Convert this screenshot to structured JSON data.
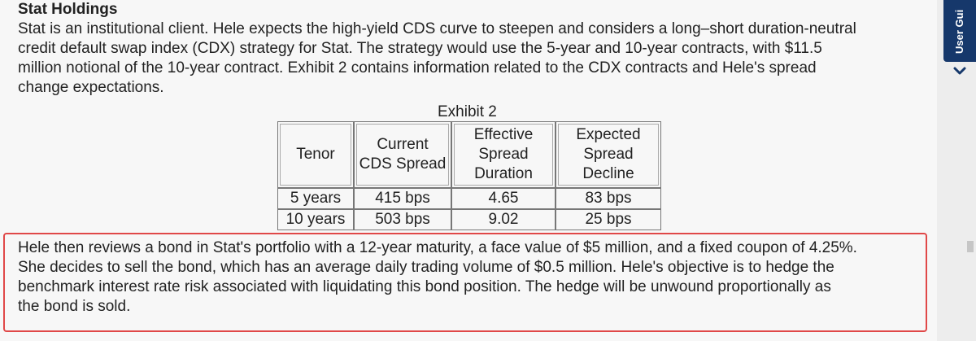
{
  "heading": "Stat Holdings",
  "intro": [
    "Stat is an institutional client. Hele expects the high-yield CDS curve to steepen and considers a long–short duration-neutral",
    "credit default swap index (CDX) strategy for Stat. The strategy would use the 5-year and 10-year contracts, with $11.5",
    "million notional of the 10-year contract. Exhibit 2 contains information related to the CDX contracts and Hele's spread",
    "change expectations."
  ],
  "exhibit": {
    "title": "Exhibit 2",
    "headers": [
      [
        "Tenor"
      ],
      [
        "Current",
        "CDS Spread"
      ],
      [
        "Effective",
        "Spread",
        "Duration"
      ],
      [
        "Expected",
        "Spread",
        "Decline"
      ]
    ],
    "rows": [
      [
        "5 years",
        "415 bps",
        "4.65",
        "83 bps"
      ],
      [
        "10 years",
        "503 bps",
        "9.02",
        "25 bps"
      ]
    ]
  },
  "followup": [
    "Hele then reviews a bond in Stat's portfolio with a 12-year maturity, a face value of $5 million, and a fixed coupon of 4.25%.",
    "She decides to sell the bond, which has an average daily trading volume of $0.5 million. Hele's objective is to hedge the",
    "benchmark interest rate risk associated with liquidating this bond position. The hedge will be unwound proportionally as",
    "the bond is sold."
  ],
  "side_tab": {
    "label": "User Gui",
    "icon": "chevron-down-icon",
    "color": "#16386b"
  },
  "highlight_color": "#e04848"
}
